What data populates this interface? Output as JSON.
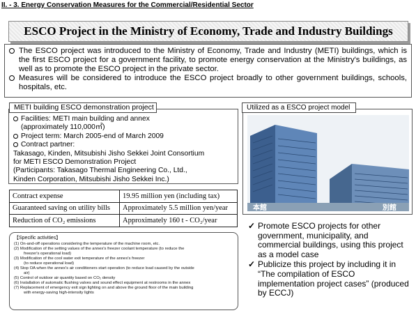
{
  "section_header": "II. - 3. Energy Conservation Measures for the Commercial/Residential Sector",
  "title": "ESCO Project in the Ministry of Economy, Trade and Industry Buildings",
  "intro": [
    "The ESCO project was introduced to the Ministry of Economy, Trade and Industry (METI) buildings, which is the first ESCO project for a government facility, to promote energy conservation at the Ministry's buildings, as well as to promote the ESCO project in the private sector.",
    "Measures will be considered to introduce the ESCO project broadly to other government buildings, schools, hospitals, etc."
  ],
  "demo": {
    "label": "METI building ESCO demonstration project",
    "facilities": "Facilities: METI  main building and annex",
    "facilities_area": "(approximately 110,000㎡)",
    "term": "Project term: March 2005-end of March 2009",
    "partner_heading": "Contract partner:",
    "partner_lines": [
      "Takasago, Kinden, Mitsubishi Jisho Sekkei Joint Consortium",
      "for METI ESCO  Demonstration Project",
      "(Participants: Takasago Thermal Engineering Co., Ltd.,",
      "Kinden Corporation, Mitsubishi Jisho Sekkei Inc.)"
    ]
  },
  "table": [
    {
      "label": "Contract expense",
      "value": "19.95 million yen (including tax)"
    },
    {
      "label": "Guaranteed saving on utility bills",
      "value": "Approximately 5.5 million yen/year"
    },
    {
      "label": "Reduction of CO₂ emissions",
      "value": "Approximately 160 t - CO₂/year"
    }
  ],
  "activities": {
    "title": "【Specific activities】",
    "lines": [
      {
        "text": "(1)  On-and-off operations considering the temperature of the machine room, etc.",
        "indent": false
      },
      {
        "text": "(2)  Modification of the setting values of the annex's freezer coolant temperature (to reduce the",
        "indent": false
      },
      {
        "text": "freezer's operational load)",
        "indent": true
      },
      {
        "text": "(3)  Modification of the cool water exit temperature of the annex's freezer",
        "indent": false
      },
      {
        "text": "(to reduce operational load)",
        "indent": true
      },
      {
        "text": "(4)  Stop OA  when the annex's air conditioners start operation (to reduce load caused by the outside",
        "indent": false
      },
      {
        "text": "air)",
        "indent": true
      },
      {
        "text": "(5) Control of outdoor air quantity based on CO₂ density",
        "indent": false
      },
      {
        "text": "(6)  Installation of automatic flushing valves and sound effect equipment at restrooms in the annex",
        "indent": false
      },
      {
        "text": "(7)  Replacement of  emergency exit sign lighting on and above the ground floor of the main building",
        "indent": false
      },
      {
        "text": "with energy-saving high-intensity lights",
        "indent": true
      }
    ]
  },
  "model": {
    "label": "Utilized as a ESCO project model",
    "main_building": "本館",
    "annex": "別館"
  },
  "benefits": [
    "Promote ESCO projects for other government, municipality, and commercial buildings, using this project as a model case",
    "Publicize this project by including it in “The compilation of ESCO implementation project cases” (produced by ECCJ)"
  ],
  "colors": {
    "sky": "#dfe7ef",
    "building": "#4f77a8",
    "building_dark": "#2f4f78",
    "window": "#1f3a5f"
  }
}
